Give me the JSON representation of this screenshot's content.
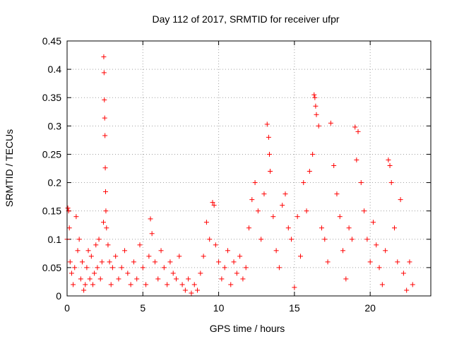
{
  "chart_data": {
    "type": "scatter",
    "title": "Day 112 of 2017, SRMTID for receiver ufpr",
    "xlabel": "GPS time / hours",
    "ylabel": "SRMTID / TECUs",
    "xlim": [
      0,
      24
    ],
    "ylim": [
      0,
      0.45
    ],
    "xticks": [
      0,
      5,
      10,
      15,
      20
    ],
    "xtick_labels": [
      "0",
      "5",
      "10",
      "15",
      "20"
    ],
    "yticks": [
      0,
      0.05,
      0.1,
      0.15,
      0.2,
      0.25,
      0.3,
      0.35,
      0.4,
      0.45
    ],
    "ytick_labels": [
      "0",
      "0.05",
      "0.1",
      "0.15",
      "0.2",
      "0.25",
      "0.3",
      "0.35",
      "0.4",
      "0.45"
    ],
    "grid": true,
    "marker": "+",
    "color": "#ff0000",
    "series": [
      {
        "name": "SRMTID",
        "x": [
          0.0,
          0.05,
          0.1,
          0.15,
          0.2,
          0.3,
          0.4,
          0.5,
          0.6,
          0.7,
          0.8,
          0.9,
          1.0,
          1.1,
          1.2,
          1.3,
          1.4,
          1.5,
          1.6,
          1.7,
          1.8,
          1.9,
          2.0,
          2.1,
          2.2,
          2.3,
          2.4,
          2.42,
          2.44,
          2.46,
          2.48,
          2.5,
          2.52,
          2.54,
          2.56,
          2.6,
          2.7,
          2.8,
          2.9,
          3.0,
          3.2,
          3.4,
          3.6,
          3.8,
          4.0,
          4.2,
          4.4,
          4.6,
          4.8,
          5.0,
          5.2,
          5.4,
          5.5,
          5.6,
          5.8,
          6.0,
          6.2,
          6.4,
          6.6,
          6.8,
          7.0,
          7.2,
          7.4,
          7.6,
          7.8,
          8.0,
          8.2,
          8.4,
          8.6,
          8.8,
          9.0,
          9.2,
          9.4,
          9.6,
          9.7,
          9.8,
          10.0,
          10.2,
          10.4,
          10.6,
          10.8,
          11.0,
          11.2,
          11.4,
          11.6,
          11.8,
          12.0,
          12.2,
          12.4,
          12.6,
          12.8,
          13.0,
          13.2,
          13.3,
          13.35,
          13.4,
          13.6,
          13.8,
          14.0,
          14.2,
          14.4,
          14.6,
          14.8,
          15.0,
          15.2,
          15.4,
          15.6,
          15.8,
          16.0,
          16.2,
          16.3,
          16.35,
          16.4,
          16.45,
          16.6,
          16.8,
          17.0,
          17.2,
          17.4,
          17.6,
          17.8,
          18.0,
          18.2,
          18.4,
          18.6,
          18.8,
          19.0,
          19.1,
          19.2,
          19.4,
          19.6,
          19.8,
          20.0,
          20.2,
          20.4,
          20.6,
          20.8,
          21.0,
          21.2,
          21.3,
          21.4,
          21.6,
          21.8,
          22.0,
          22.2,
          22.4,
          22.6,
          22.8
        ],
        "y": [
          0.1,
          0.155,
          0.15,
          0.12,
          0.06,
          0.04,
          0.02,
          0.05,
          0.14,
          0.08,
          0.1,
          0.03,
          0.06,
          0.01,
          0.02,
          0.05,
          0.08,
          0.03,
          0.07,
          0.02,
          0.04,
          0.09,
          0.05,
          0.1,
          0.03,
          0.06,
          0.13,
          0.422,
          0.394,
          0.346,
          0.314,
          0.283,
          0.226,
          0.184,
          0.15,
          0.12,
          0.09,
          0.06,
          0.02,
          0.05,
          0.07,
          0.03,
          0.05,
          0.08,
          0.04,
          0.02,
          0.06,
          0.03,
          0.09,
          0.05,
          0.02,
          0.07,
          0.136,
          0.11,
          0.06,
          0.03,
          0.08,
          0.05,
          0.02,
          0.06,
          0.04,
          0.03,
          0.07,
          0.02,
          0.01,
          0.03,
          0.005,
          0.02,
          0.01,
          0.04,
          0.07,
          0.13,
          0.1,
          0.165,
          0.16,
          0.09,
          0.06,
          0.03,
          0.05,
          0.08,
          0.02,
          0.06,
          0.04,
          0.07,
          0.03,
          0.05,
          0.12,
          0.17,
          0.2,
          0.15,
          0.1,
          0.18,
          0.303,
          0.28,
          0.25,
          0.22,
          0.14,
          0.08,
          0.05,
          0.16,
          0.18,
          0.12,
          0.1,
          0.015,
          0.14,
          0.07,
          0.2,
          0.15,
          0.22,
          0.25,
          0.355,
          0.35,
          0.335,
          0.32,
          0.3,
          0.12,
          0.1,
          0.06,
          0.305,
          0.23,
          0.18,
          0.14,
          0.08,
          0.03,
          0.12,
          0.1,
          0.298,
          0.24,
          0.29,
          0.2,
          0.15,
          0.1,
          0.06,
          0.13,
          0.09,
          0.05,
          0.02,
          0.08,
          0.24,
          0.23,
          0.2,
          0.12,
          0.06,
          0.17,
          0.04,
          0.01,
          0.06,
          0.02
        ]
      }
    ]
  }
}
